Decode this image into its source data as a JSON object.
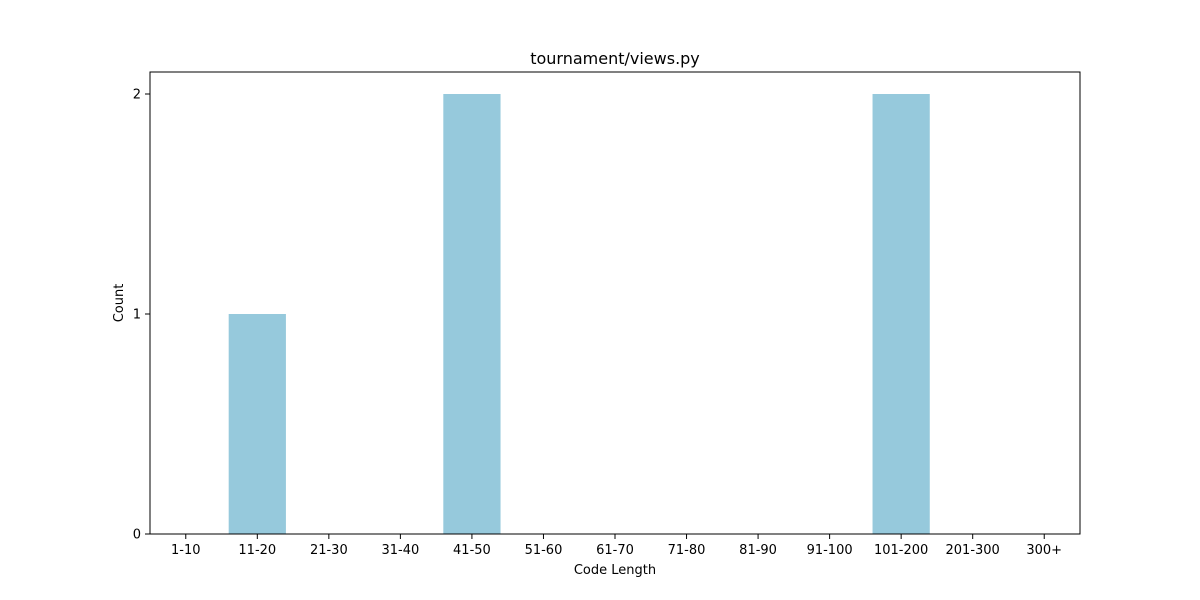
{
  "chart_data": {
    "type": "bar",
    "title": "tournament/views.py",
    "xlabel": "Code Length",
    "ylabel": "Count",
    "categories": [
      "1-10",
      "11-20",
      "21-30",
      "31-40",
      "41-50",
      "51-60",
      "61-70",
      "71-80",
      "81-90",
      "91-100",
      "101-200",
      "201-300",
      "300+"
    ],
    "values": [
      0,
      1,
      0,
      0,
      2,
      0,
      0,
      0,
      0,
      0,
      2,
      0,
      0
    ],
    "yticks": [
      "0",
      "1",
      "2"
    ],
    "ylim": [
      0,
      2.1
    ],
    "grid": false,
    "bar_color": "#96c9dc"
  }
}
